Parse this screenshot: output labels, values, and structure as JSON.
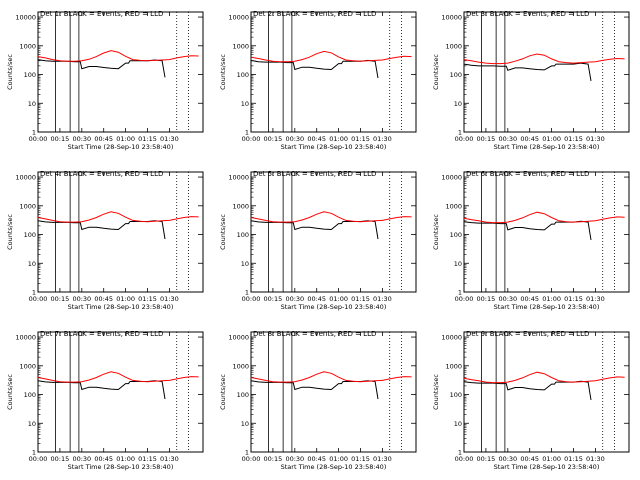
{
  "figure": {
    "colors": {
      "events": "#000000",
      "lld": "#ff0000",
      "background": "#ffffff"
    },
    "shared": {
      "xlabel": "Start Time (28-Sep-10 23:58:40)",
      "ylabel": "Counts/sec",
      "x_tick_labels": [
        "00:00",
        "00:15",
        "00:30",
        "00:45",
        "01:00",
        "01:15",
        "01:30"
      ],
      "y_tick_labels": [
        "1",
        "10",
        "100",
        "1000",
        "10000"
      ],
      "y_scale": "log",
      "ylim": [
        1,
        15000
      ],
      "xlim_minutes": [
        0,
        113
      ]
    }
  },
  "chart_data": [
    {
      "type": "line",
      "title": "Det 1: BLACK = Events, RED = LLD",
      "series": [
        {
          "name": "Events",
          "color": "#000000",
          "x": [
            0,
            5,
            10,
            15,
            20,
            25,
            29,
            30,
            35,
            40,
            45,
            50,
            55,
            60,
            62,
            63,
            70,
            75,
            80,
            85,
            87
          ],
          "y": [
            330,
            300,
            290,
            290,
            290,
            280,
            280,
            160,
            190,
            190,
            175,
            165,
            160,
            250,
            250,
            300,
            300,
            300,
            320,
            300,
            80
          ]
        },
        {
          "name": "LLD",
          "color": "#ff0000",
          "x": [
            0,
            5,
            10,
            15,
            20,
            25,
            30,
            35,
            40,
            45,
            50,
            55,
            60,
            65,
            70,
            75,
            80,
            85,
            90,
            95,
            100,
            105,
            110
          ],
          "y": [
            420,
            380,
            330,
            300,
            290,
            290,
            300,
            340,
            420,
            560,
            680,
            600,
            430,
            330,
            310,
            300,
            310,
            320,
            330,
            380,
            420,
            450,
            440
          ]
        }
      ],
      "vlines": [
        12,
        22,
        28,
        95,
        103
      ]
    },
    {
      "type": "line",
      "title": "Det 2: BLACK = Events, RED = LLD",
      "series": [
        {
          "name": "Events",
          "color": "#000000",
          "x": [
            0,
            5,
            10,
            15,
            20,
            25,
            29,
            30,
            35,
            40,
            45,
            50,
            55,
            60,
            62,
            63,
            70,
            75,
            80,
            85,
            87
          ],
          "y": [
            310,
            280,
            270,
            270,
            270,
            260,
            260,
            150,
            180,
            180,
            165,
            155,
            150,
            240,
            240,
            290,
            290,
            290,
            310,
            290,
            75
          ]
        },
        {
          "name": "LLD",
          "color": "#ff0000",
          "x": [
            0,
            5,
            10,
            15,
            20,
            25,
            30,
            35,
            40,
            45,
            50,
            55,
            60,
            65,
            70,
            75,
            80,
            85,
            90,
            95,
            100,
            105,
            110
          ],
          "y": [
            400,
            360,
            320,
            290,
            280,
            280,
            290,
            330,
            400,
            530,
            640,
            570,
            410,
            320,
            300,
            290,
            300,
            310,
            320,
            360,
            400,
            430,
            420
          ]
        }
      ],
      "vlines": [
        12,
        22,
        28,
        95,
        103
      ]
    },
    {
      "type": "line",
      "title": "Det 3: BLACK = Events, RED = LLD",
      "series": [
        {
          "name": "Events",
          "color": "#000000",
          "x": [
            0,
            5,
            10,
            15,
            20,
            25,
            29,
            30,
            35,
            40,
            45,
            50,
            55,
            60,
            62,
            63,
            70,
            75,
            80,
            85,
            87
          ],
          "y": [
            230,
            210,
            200,
            200,
            200,
            195,
            195,
            140,
            170,
            170,
            160,
            150,
            145,
            200,
            200,
            230,
            230,
            230,
            250,
            230,
            60
          ]
        },
        {
          "name": "LLD",
          "color": "#ff0000",
          "x": [
            0,
            5,
            10,
            15,
            20,
            25,
            30,
            35,
            40,
            45,
            50,
            55,
            60,
            65,
            70,
            75,
            80,
            85,
            90,
            95,
            100,
            105,
            110
          ],
          "y": [
            330,
            300,
            270,
            250,
            240,
            240,
            250,
            290,
            350,
            450,
            520,
            470,
            350,
            280,
            260,
            250,
            260,
            270,
            280,
            310,
            340,
            360,
            350
          ]
        }
      ],
      "vlines": [
        12,
        22,
        28,
        95,
        103
      ]
    },
    {
      "type": "line",
      "title": "Det 4: BLACK = Events, RED = LLD",
      "series": [
        {
          "name": "Events",
          "color": "#000000",
          "x": [
            0,
            5,
            10,
            15,
            20,
            25,
            29,
            30,
            35,
            40,
            45,
            50,
            55,
            60,
            62,
            63,
            70,
            75,
            80,
            85,
            87
          ],
          "y": [
            300,
            275,
            265,
            265,
            265,
            255,
            255,
            150,
            180,
            180,
            165,
            155,
            150,
            240,
            240,
            285,
            285,
            285,
            300,
            285,
            70
          ]
        },
        {
          "name": "LLD",
          "color": "#ff0000",
          "x": [
            0,
            5,
            10,
            15,
            20,
            25,
            30,
            35,
            40,
            45,
            50,
            55,
            60,
            65,
            70,
            75,
            80,
            85,
            90,
            95,
            100,
            105,
            110
          ],
          "y": [
            390,
            350,
            310,
            280,
            270,
            270,
            280,
            320,
            390,
            510,
            620,
            550,
            400,
            310,
            290,
            280,
            290,
            300,
            310,
            350,
            390,
            420,
            410
          ]
        }
      ],
      "vlines": [
        12,
        22,
        28,
        95,
        103
      ]
    },
    {
      "type": "line",
      "title": "Det 5: BLACK = Events, RED = LLD",
      "series": [
        {
          "name": "Events",
          "color": "#000000",
          "x": [
            0,
            5,
            10,
            15,
            20,
            25,
            29,
            30,
            35,
            40,
            45,
            50,
            55,
            60,
            62,
            63,
            70,
            75,
            80,
            85,
            87
          ],
          "y": [
            300,
            275,
            265,
            265,
            265,
            255,
            255,
            150,
            180,
            180,
            165,
            155,
            150,
            240,
            240,
            285,
            285,
            285,
            300,
            285,
            70
          ]
        },
        {
          "name": "LLD",
          "color": "#ff0000",
          "x": [
            0,
            5,
            10,
            15,
            20,
            25,
            30,
            35,
            40,
            45,
            50,
            55,
            60,
            65,
            70,
            75,
            80,
            85,
            90,
            95,
            100,
            105,
            110
          ],
          "y": [
            390,
            350,
            310,
            280,
            270,
            270,
            280,
            320,
            390,
            510,
            620,
            550,
            400,
            310,
            290,
            280,
            290,
            300,
            310,
            350,
            390,
            420,
            410
          ]
        }
      ],
      "vlines": [
        12,
        22,
        28,
        95,
        103
      ]
    },
    {
      "type": "line",
      "title": "Det 6: BLACK = Events, RED = LLD",
      "series": [
        {
          "name": "Events",
          "color": "#000000",
          "x": [
            0,
            5,
            10,
            15,
            20,
            25,
            29,
            30,
            35,
            40,
            45,
            50,
            55,
            60,
            62,
            63,
            70,
            75,
            80,
            85,
            87
          ],
          "y": [
            280,
            260,
            250,
            250,
            250,
            240,
            240,
            145,
            175,
            175,
            160,
            150,
            145,
            230,
            230,
            270,
            270,
            270,
            290,
            270,
            65
          ]
        },
        {
          "name": "LLD",
          "color": "#ff0000",
          "x": [
            0,
            5,
            10,
            15,
            20,
            25,
            30,
            35,
            40,
            45,
            50,
            55,
            60,
            65,
            70,
            75,
            80,
            85,
            90,
            95,
            100,
            105,
            110
          ],
          "y": [
            370,
            330,
            300,
            270,
            260,
            260,
            270,
            310,
            380,
            490,
            600,
            530,
            390,
            300,
            280,
            270,
            280,
            290,
            300,
            340,
            380,
            410,
            400
          ]
        }
      ],
      "vlines": [
        12,
        22,
        28,
        95,
        103
      ]
    },
    {
      "type": "line",
      "title": "Det 7: BLACK = Events, RED = LLD",
      "series": [
        {
          "name": "Events",
          "color": "#000000",
          "x": [
            0,
            5,
            10,
            15,
            20,
            25,
            29,
            30,
            35,
            40,
            45,
            50,
            55,
            60,
            62,
            63,
            70,
            75,
            80,
            85,
            87
          ],
          "y": [
            300,
            275,
            265,
            265,
            265,
            255,
            255,
            150,
            180,
            180,
            165,
            155,
            150,
            240,
            240,
            285,
            285,
            285,
            300,
            285,
            70
          ]
        },
        {
          "name": "LLD",
          "color": "#ff0000",
          "x": [
            0,
            5,
            10,
            15,
            20,
            25,
            30,
            35,
            40,
            45,
            50,
            55,
            60,
            65,
            70,
            75,
            80,
            85,
            90,
            95,
            100,
            105,
            110
          ],
          "y": [
            390,
            350,
            310,
            280,
            270,
            270,
            280,
            320,
            390,
            510,
            620,
            550,
            400,
            310,
            290,
            280,
            290,
            300,
            310,
            350,
            390,
            420,
            410
          ]
        }
      ],
      "vlines": [
        12,
        22,
        28,
        95,
        103
      ]
    },
    {
      "type": "line",
      "title": "Det 8: BLACK = Events, RED = LLD",
      "series": [
        {
          "name": "Events",
          "color": "#000000",
          "x": [
            0,
            5,
            10,
            15,
            20,
            25,
            29,
            30,
            35,
            40,
            45,
            50,
            55,
            60,
            62,
            63,
            70,
            75,
            80,
            85,
            87
          ],
          "y": [
            300,
            275,
            265,
            265,
            265,
            255,
            255,
            150,
            180,
            180,
            165,
            155,
            150,
            240,
            240,
            285,
            285,
            285,
            300,
            285,
            70
          ]
        },
        {
          "name": "LLD",
          "color": "#ff0000",
          "x": [
            0,
            5,
            10,
            15,
            20,
            25,
            30,
            35,
            40,
            45,
            50,
            55,
            60,
            65,
            70,
            75,
            80,
            85,
            90,
            95,
            100,
            105,
            110
          ],
          "y": [
            390,
            350,
            310,
            280,
            270,
            270,
            280,
            320,
            390,
            510,
            620,
            550,
            400,
            310,
            290,
            280,
            290,
            300,
            310,
            350,
            390,
            420,
            410
          ]
        }
      ],
      "vlines": [
        12,
        22,
        28,
        95,
        103
      ]
    },
    {
      "type": "line",
      "title": "Det 9: BLACK = Events, RED = LLD",
      "series": [
        {
          "name": "Events",
          "color": "#000000",
          "x": [
            0,
            5,
            10,
            15,
            20,
            25,
            29,
            30,
            35,
            40,
            45,
            50,
            55,
            60,
            62,
            63,
            70,
            75,
            80,
            85,
            87
          ],
          "y": [
            280,
            260,
            250,
            250,
            250,
            240,
            240,
            145,
            175,
            175,
            160,
            150,
            145,
            230,
            230,
            270,
            270,
            270,
            290,
            270,
            65
          ]
        },
        {
          "name": "LLD",
          "color": "#ff0000",
          "x": [
            0,
            5,
            10,
            15,
            20,
            25,
            30,
            35,
            40,
            45,
            50,
            55,
            60,
            65,
            70,
            75,
            80,
            85,
            90,
            95,
            100,
            105,
            110
          ],
          "y": [
            370,
            330,
            300,
            270,
            260,
            260,
            270,
            310,
            380,
            490,
            600,
            530,
            390,
            300,
            280,
            270,
            280,
            290,
            300,
            340,
            380,
            410,
            400
          ]
        }
      ],
      "vlines": [
        12,
        22,
        28,
        95,
        103
      ]
    }
  ]
}
